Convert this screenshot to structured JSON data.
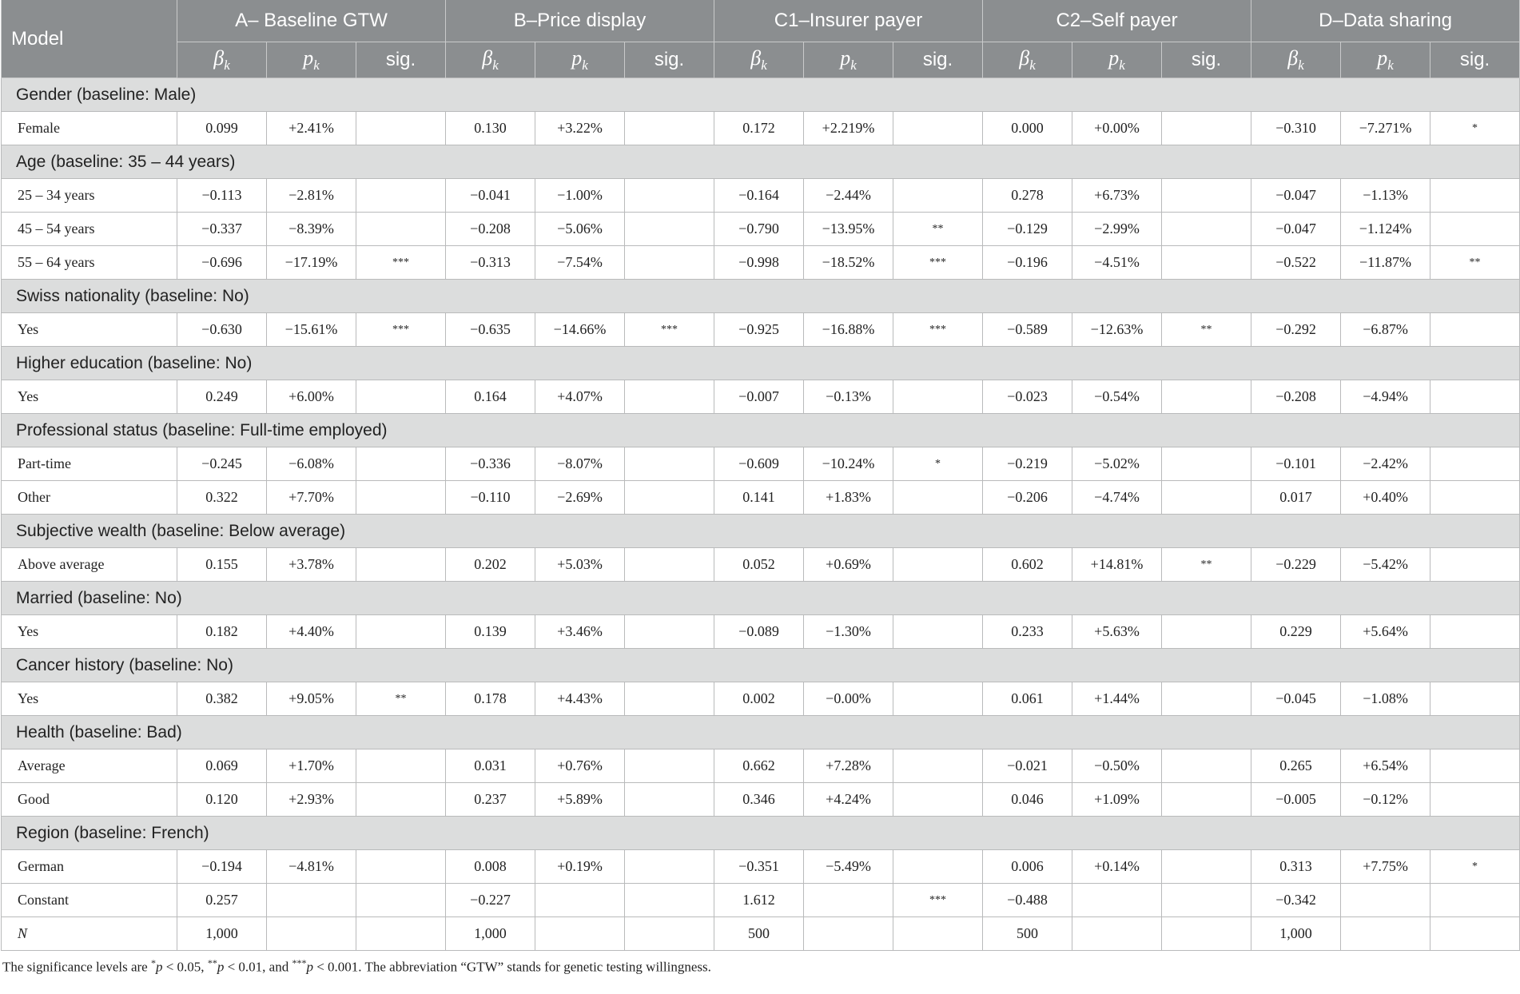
{
  "table": {
    "header": {
      "model": "Model",
      "models": [
        "A– Baseline GTW",
        "B–Price display",
        "C1–Insurer payer",
        "C2–Self payer",
        "D–Data sharing"
      ],
      "sub": [
        {
          "symbol": "β",
          "index": "k"
        },
        {
          "symbol": "p",
          "index": "k"
        },
        "sig."
      ]
    },
    "groups": [
      {
        "heading": "Gender (baseline: Male)",
        "rows": [
          {
            "label": "Female",
            "cells": [
              "0.099",
              "+2.41%",
              null,
              "0.130",
              "+3.22%",
              null,
              "0.172",
              "+2.219%",
              null,
              "0.000",
              "+0.00%",
              null,
              "−0.310",
              "−7.271%",
              "*"
            ]
          }
        ]
      },
      {
        "heading": "Age (baseline: 35 – 44 years)",
        "rows": [
          {
            "label": "25 – 34 years",
            "cells": [
              "−0.113",
              "−2.81%",
              null,
              "−0.041",
              "−1.00%",
              null,
              "−0.164",
              "−2.44%",
              null,
              "0.278",
              "+6.73%",
              null,
              "−0.047",
              "−1.13%",
              null
            ]
          },
          {
            "label": "45 – 54 years",
            "cells": [
              "−0.337",
              "−8.39%",
              null,
              "−0.208",
              "−5.06%",
              null,
              "−0.790",
              "−13.95%",
              "**",
              "−0.129",
              "−2.99%",
              null,
              "−0.047",
              "−1.124%",
              null
            ]
          },
          {
            "label": "55 – 64 years",
            "cells": [
              "−0.696",
              "−17.19%",
              "***",
              "−0.313",
              "−7.54%",
              null,
              "−0.998",
              "−18.52%",
              "***",
              "−0.196",
              "−4.51%",
              null,
              "−0.522",
              "−11.87%",
              "**"
            ]
          }
        ]
      },
      {
        "heading": "Swiss nationality (baseline: No)",
        "rows": [
          {
            "label": "Yes",
            "cells": [
              "−0.630",
              "−15.61%",
              "***",
              "−0.635",
              "−14.66%",
              "***",
              "−0.925",
              "−16.88%",
              "***",
              "−0.589",
              "−12.63%",
              "**",
              "−0.292",
              "−6.87%",
              null
            ]
          }
        ]
      },
      {
        "heading": "Higher education (baseline: No)",
        "rows": [
          {
            "label": "Yes",
            "cells": [
              "0.249",
              "+6.00%",
              null,
              "0.164",
              "+4.07%",
              null,
              "−0.007",
              "−0.13%",
              null,
              "−0.023",
              "−0.54%",
              null,
              "−0.208",
              "−4.94%",
              null
            ]
          }
        ]
      },
      {
        "heading": "Professional status (baseline: Full-time employed)",
        "rows": [
          {
            "label": "Part-time",
            "cells": [
              "−0.245",
              "−6.08%",
              null,
              "−0.336",
              "−8.07%",
              null,
              "−0.609",
              "−10.24%",
              "*",
              "−0.219",
              "−5.02%",
              null,
              "−0.101",
              "−2.42%",
              null
            ]
          },
          {
            "label": "Other",
            "cells": [
              "0.322",
              "+7.70%",
              null,
              "−0.110",
              "−2.69%",
              null,
              "0.141",
              "+1.83%",
              null,
              "−0.206",
              "−4.74%",
              null,
              "0.017",
              "+0.40%",
              null
            ]
          }
        ]
      },
      {
        "heading": "Subjective wealth (baseline: Below average)",
        "rows": [
          {
            "label": "Above average",
            "cells": [
              "0.155",
              "+3.78%",
              null,
              "0.202",
              "+5.03%",
              null,
              "0.052",
              "+0.69%",
              null,
              "0.602",
              "+14.81%",
              "**",
              "−0.229",
              "−5.42%",
              null
            ]
          }
        ]
      },
      {
        "heading": "Married (baseline: No)",
        "rows": [
          {
            "label": "Yes",
            "cells": [
              "0.182",
              "+4.40%",
              null,
              "0.139",
              "+3.46%",
              null,
              "−0.089",
              "−1.30%",
              null,
              "0.233",
              "+5.63%",
              null,
              "0.229",
              "+5.64%",
              null
            ]
          }
        ]
      },
      {
        "heading": "Cancer history (baseline: No)",
        "rows": [
          {
            "label": "Yes",
            "cells": [
              "0.382",
              "+9.05%",
              "**",
              "0.178",
              "+4.43%",
              null,
              "0.002",
              "−0.00%",
              null,
              "0.061",
              "+1.44%",
              null,
              "−0.045",
              "−1.08%",
              null
            ]
          }
        ]
      },
      {
        "heading": "Health (baseline: Bad)",
        "rows": [
          {
            "label": "Average",
            "cells": [
              "0.069",
              "+1.70%",
              null,
              "0.031",
              "+0.76%",
              null,
              "0.662",
              "+7.28%",
              null,
              "−0.021",
              "−0.50%",
              null,
              "0.265",
              "+6.54%",
              null
            ]
          },
          {
            "label": "Good",
            "cells": [
              "0.120",
              "+2.93%",
              null,
              "0.237",
              "+5.89%",
              null,
              "0.346",
              "+4.24%",
              null,
              "0.046",
              "+1.09%",
              null,
              "−0.005",
              "−0.12%",
              null
            ]
          }
        ]
      },
      {
        "heading": "Region (baseline: French)",
        "rows": [
          {
            "label": "German",
            "cells": [
              "−0.194",
              "−4.81%",
              null,
              "0.008",
              "+0.19%",
              null,
              "−0.351",
              "−5.49%",
              null,
              "0.006",
              "+0.14%",
              null,
              "0.313",
              "+7.75%",
              "*"
            ]
          },
          {
            "label": "Constant",
            "cells": [
              "0.257",
              null,
              null,
              "−0.227",
              null,
              null,
              "1.612",
              null,
              "***",
              "−0.488",
              null,
              null,
              "−0.342",
              null,
              null
            ]
          },
          {
            "label": "N",
            "italic": true,
            "cells": [
              "1,000",
              null,
              null,
              "1,000",
              null,
              null,
              "500",
              null,
              null,
              "500",
              null,
              null,
              "1,000",
              null,
              null
            ]
          }
        ]
      }
    ],
    "footnote": [
      "The significance levels are ",
      "*",
      "p",
      " < 0.05, ",
      "**",
      "p",
      " < 0.01, and ",
      "***",
      "p",
      " < 0.001. The abbreviation “GTW” stands for genetic testing willingness."
    ]
  }
}
